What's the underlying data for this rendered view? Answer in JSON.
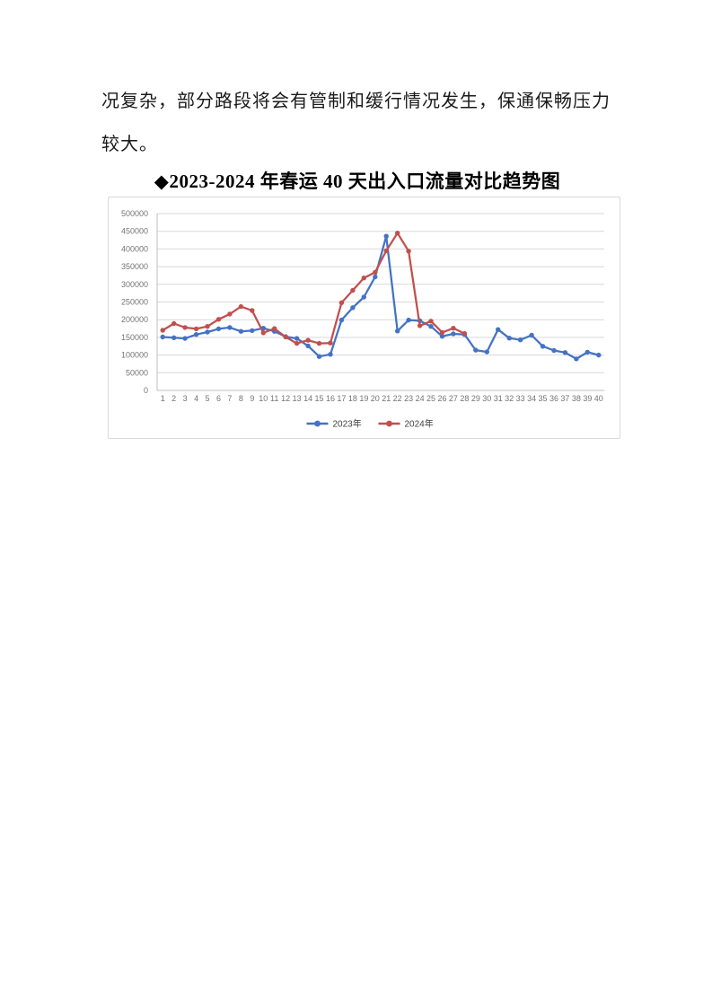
{
  "page": {
    "paragraph_line1": "况复杂，部分路段将会有管制和缓行情况发生，保通保畅压力",
    "paragraph_line2": "较大。",
    "chart_title": "◆2023-2024 年春运 40 天出入口流量对比趋势图"
  },
  "chart_data": {
    "type": "line",
    "title": "2023-2024年春运40天出入口流量对比趋势图",
    "x": [
      1,
      2,
      3,
      4,
      5,
      6,
      7,
      8,
      9,
      10,
      11,
      12,
      13,
      14,
      15,
      16,
      17,
      18,
      19,
      20,
      21,
      22,
      23,
      24,
      25,
      26,
      27,
      28,
      29,
      30,
      31,
      32,
      33,
      34,
      35,
      36,
      37,
      38,
      39,
      40
    ],
    "series": [
      {
        "name": "2023年",
        "color": "#4472C4",
        "values": [
          151000,
          149000,
          147000,
          158000,
          165000,
          174000,
          178000,
          167000,
          169000,
          176000,
          167000,
          152000,
          147000,
          126000,
          96000,
          102000,
          199000,
          234000,
          264000,
          321000,
          436000,
          168000,
          199000,
          197000,
          181000,
          153000,
          160000,
          158000,
          114000,
          109000,
          172000,
          148000,
          143000,
          156000,
          125000,
          113000,
          107000,
          89000,
          108000,
          100000
        ]
      },
      {
        "name": "2024年",
        "color": "#C0504D",
        "values": [
          170000,
          189000,
          178000,
          174000,
          181000,
          201000,
          216000,
          237000,
          226000,
          163000,
          175000,
          151000,
          133000,
          142000,
          133000,
          134000,
          248000,
          283000,
          318000,
          334000,
          395000,
          445000,
          394000,
          183000,
          196000,
          164000,
          176000,
          161000,
          null,
          null,
          null,
          null,
          null,
          null,
          null,
          null,
          null,
          null,
          null,
          null
        ]
      }
    ],
    "ylim": [
      0,
      500000
    ],
    "yticks": [
      0,
      50000,
      100000,
      150000,
      200000,
      250000,
      300000,
      350000,
      400000,
      450000,
      500000
    ],
    "ytick_labels": [
      "0",
      "50000",
      "100000",
      "150000",
      "200000",
      "250000",
      "300000",
      "350000",
      "400000",
      "450000",
      "500000"
    ],
    "grid": "horizontal",
    "grid_color": "#d9d9d9",
    "axis_line_color": "#bfbfbf",
    "axis_label_color": "#737373",
    "legend_text_color": "#404040",
    "legend_position": "bottom",
    "xlabel": "",
    "ylabel": ""
  }
}
